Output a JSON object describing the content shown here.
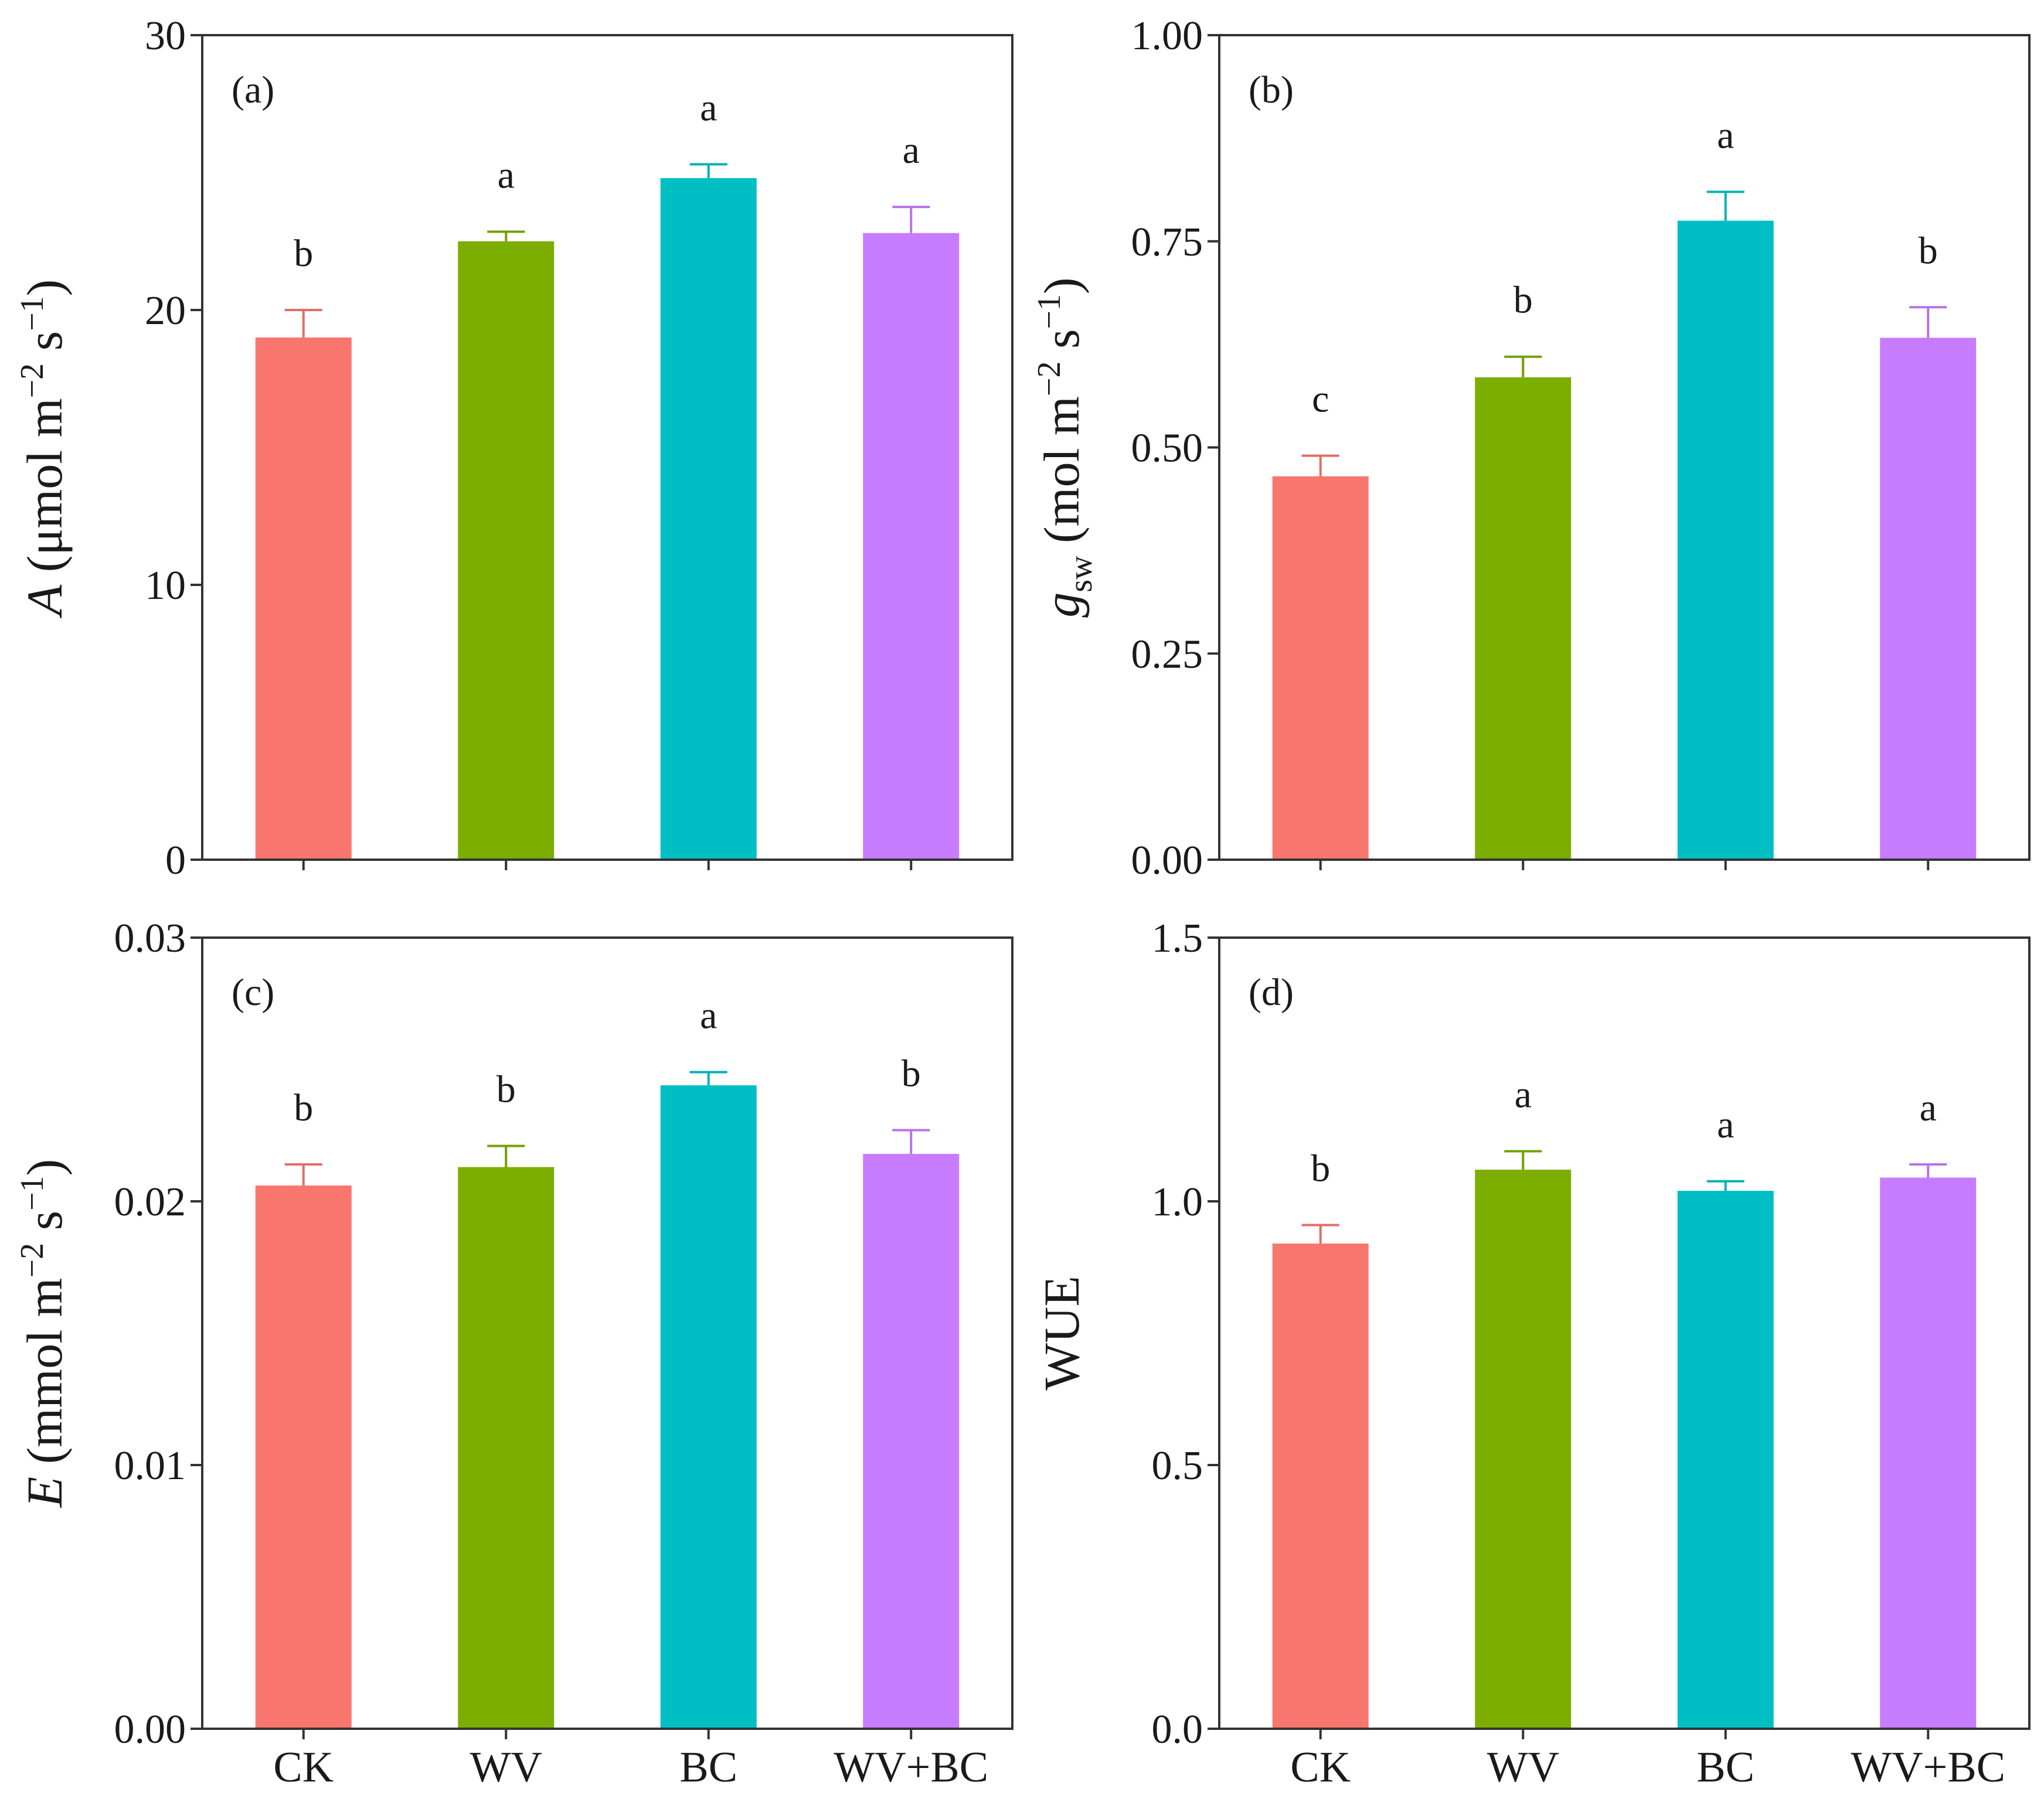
{
  "colors": {
    "CK": "#F8766D",
    "WV": "#7CAE00",
    "BC": "#00BFC4",
    "WV+BC": "#C77CFF"
  },
  "chart_data": [
    {
      "type": "bar",
      "panel": "(a)",
      "ylabel_var": "A",
      "ylabel_unit_pre": "(μmol m",
      "ylabel_sup1": "−2",
      "ylabel_mid": " s",
      "ylabel_sup2": "−1",
      "ylabel_post": ")",
      "categories": [
        "CK",
        "WV",
        "BC",
        "WV+BC"
      ],
      "values": [
        19.0,
        22.5,
        24.8,
        22.8
      ],
      "errors": [
        1.0,
        0.35,
        0.5,
        0.95
      ],
      "letters": [
        "b",
        "a",
        "a",
        "a"
      ],
      "ylim": [
        0,
        30
      ],
      "yticks": [
        "0",
        "10",
        "20",
        "30"
      ],
      "ytick_values": [
        0,
        10,
        20,
        30
      ]
    },
    {
      "type": "bar",
      "panel": "(b)",
      "ylabel_var": "g",
      "ylabel_sub": "sw",
      "ylabel_unit_pre": "(mol m",
      "ylabel_sup1": "−2",
      "ylabel_mid": " s",
      "ylabel_sup2": "−1",
      "ylabel_post": ")",
      "categories": [
        "CK",
        "WV",
        "BC",
        "WV+BC"
      ],
      "values": [
        0.465,
        0.585,
        0.775,
        0.633
      ],
      "errors": [
        0.025,
        0.025,
        0.035,
        0.037
      ],
      "letters": [
        "c",
        "b",
        "a",
        "b"
      ],
      "ylim": [
        0,
        1.0
      ],
      "yticks": [
        "0.00",
        "0.25",
        "0.50",
        "0.75",
        "1.00"
      ],
      "ytick_values": [
        0,
        0.25,
        0.5,
        0.75,
        1.0
      ]
    },
    {
      "type": "bar",
      "panel": "(c)",
      "ylabel_var": "E",
      "ylabel_unit_pre": "(mmol m",
      "ylabel_sup1": "−2",
      "ylabel_mid": " s",
      "ylabel_sup2": "−1",
      "ylabel_post": ")",
      "categories": [
        "CK",
        "WV",
        "BC",
        "WV+BC"
      ],
      "values": [
        0.0206,
        0.0213,
        0.0244,
        0.0218
      ],
      "errors": [
        0.0008,
        0.0008,
        0.0005,
        0.0009
      ],
      "letters": [
        "b",
        "b",
        "a",
        "b"
      ],
      "ylim": [
        0,
        0.03
      ],
      "yticks": [
        "0.00",
        "0.01",
        "0.02",
        "0.03"
      ],
      "ytick_values": [
        0,
        0.01,
        0.02,
        0.03
      ]
    },
    {
      "type": "bar",
      "panel": "(d)",
      "ylabel_plain": "WUE",
      "categories": [
        "CK",
        "WV",
        "BC",
        "WV+BC"
      ],
      "values": [
        0.92,
        1.06,
        1.02,
        1.045
      ],
      "errors": [
        0.035,
        0.035,
        0.018,
        0.025
      ],
      "letters": [
        "b",
        "a",
        "a",
        "a"
      ],
      "ylim": [
        0,
        1.5
      ],
      "yticks": [
        "0.0",
        "0.5",
        "1.0",
        "1.5"
      ],
      "ytick_values": [
        0,
        0.5,
        1.0,
        1.5
      ]
    }
  ]
}
